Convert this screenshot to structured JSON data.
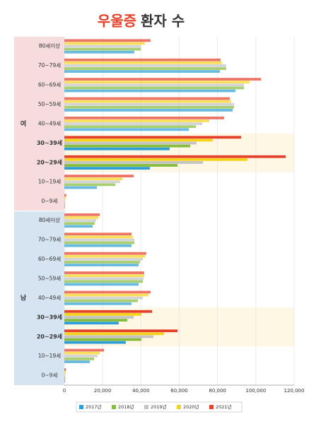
{
  "chart_data": {
    "type": "hbar",
    "title_parts": [
      "우울증",
      "환자 수"
    ],
    "groups": [
      "여",
      "남"
    ],
    "categories": [
      "80세이상",
      "70~79세",
      "60~69세",
      "50~59세",
      "40~49세",
      "30~39세",
      "20~29세",
      "10~19세",
      "0~9세",
      "80세이상",
      "70~79세",
      "60~69세",
      "50~59세",
      "40~49세",
      "30~39세",
      "20~29세",
      "10~19세",
      "0~9세"
    ],
    "highlight_categories": [
      5,
      6,
      14,
      15
    ],
    "series": [
      {
        "name": "2021년",
        "color": "#e4402a",
        "values": [
          45000,
          81600,
          102700,
          86400,
          83400,
          92300,
          115600,
          36200,
          1000,
          18500,
          35100,
          42800,
          41700,
          45000,
          45800,
          59100,
          20700,
          800
        ]
      },
      {
        "name": "2020년",
        "color": "#f7d21b",
        "values": [
          42000,
          82300,
          96700,
          87100,
          75700,
          77500,
          95600,
          30300,
          600,
          17700,
          35800,
          42100,
          41700,
          43900,
          40300,
          52100,
          18500,
          700
        ]
      },
      {
        "name": "2019년",
        "color": "#c4c4c4",
        "values": [
          40000,
          84500,
          93800,
          88600,
          72000,
          69000,
          72400,
          29200,
          500,
          16600,
          36600,
          41000,
          41400,
          41000,
          36200,
          46500,
          17400,
          600
        ]
      },
      {
        "name": "2018년",
        "color": "#86bd3c",
        "values": [
          40000,
          84500,
          93800,
          88600,
          68700,
          65700,
          59100,
          26600,
          400,
          15900,
          36600,
          39500,
          41000,
          38400,
          32900,
          40300,
          15500,
          500
        ]
      },
      {
        "name": "2017년",
        "color": "#2e9fd6",
        "values": [
          36500,
          81200,
          89400,
          87900,
          65000,
          55000,
          44700,
          17000,
          300,
          14800,
          35100,
          38800,
          38800,
          35100,
          28400,
          32100,
          13300,
          400
        ]
      }
    ],
    "xlim": [
      0,
      120000
    ],
    "xticks": [
      0,
      {
        "value": 20000,
        "label": "20,000"
      },
      {
        "value": 40000,
        "label": "40,000"
      },
      {
        "value": 60000,
        "label": "60,000"
      },
      {
        "value": 80000,
        "label": "80,000"
      },
      {
        "value": 100000,
        "label": "100,000"
      },
      {
        "value": 120000,
        "label": "120,000"
      }
    ],
    "grid": true
  }
}
